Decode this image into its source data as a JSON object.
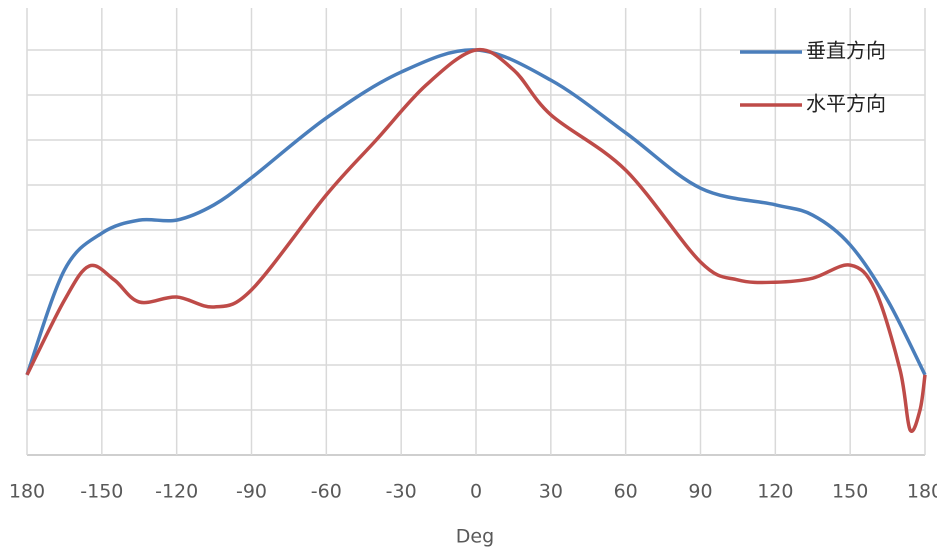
{
  "chart_data": {
    "type": "line",
    "x_label": "Deg",
    "xlim": [
      -180,
      180
    ],
    "xticks": [
      {
        "value": -180,
        "label": "180"
      },
      -150,
      -120,
      -90,
      -60,
      -30,
      0,
      30,
      60,
      90,
      120,
      150,
      180
    ],
    "ylim": [
      0,
      10
    ],
    "yticks": [
      0,
      1,
      2,
      3,
      4,
      5,
      6,
      7,
      8,
      9
    ],
    "show_ytick_labels": false,
    "grid": true,
    "legend": "upper right",
    "series": [
      {
        "name": "垂直方向",
        "color": "#4a7ebb",
        "x": [
          -180,
          -165,
          -150,
          -135,
          -120,
          -105,
          -90,
          -60,
          -30,
          0,
          30,
          60,
          90,
          120,
          135,
          150,
          165,
          180
        ],
        "values": [
          1.78,
          4.11,
          4.93,
          5.22,
          5.22,
          5.56,
          6.16,
          7.49,
          8.51,
          9,
          8.33,
          7.16,
          5.93,
          5.56,
          5.33,
          4.67,
          3.44,
          1.78
        ]
      },
      {
        "name": "水平方向",
        "color": "#be4b48",
        "x": [
          -180,
          -165,
          -155,
          -145,
          -135,
          -120,
          -105,
          -90,
          -60,
          -40,
          -20,
          0,
          15,
          30,
          60,
          90,
          105,
          120,
          135,
          150,
          160,
          170,
          174,
          178,
          180
        ],
        "values": [
          1.78,
          3.44,
          4.2,
          3.89,
          3.4,
          3.51,
          3.29,
          3.67,
          5.78,
          7,
          8.22,
          9,
          8.56,
          7.56,
          6.33,
          4.29,
          3.89,
          3.84,
          3.93,
          4.22,
          3.67,
          1.89,
          0.56,
          1,
          1.78
        ]
      }
    ]
  }
}
